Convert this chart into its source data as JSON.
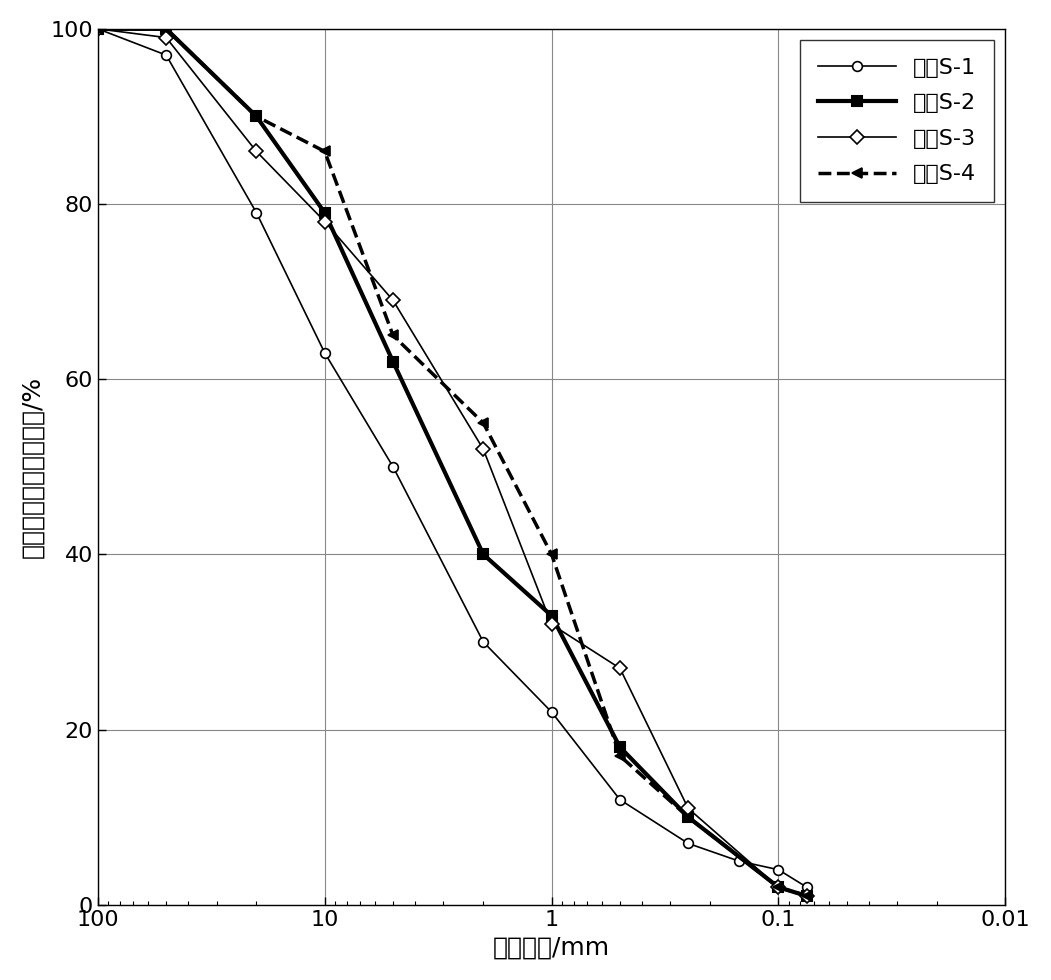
{
  "title": "",
  "xlabel": "土粒直径/mm",
  "ylabel": "小于某粒径土重百分数/%",
  "xlim": [
    0.01,
    100
  ],
  "ylim": [
    0,
    100
  ],
  "yticks": [
    0,
    20,
    40,
    60,
    80,
    100
  ],
  "series": [
    {
      "label": "土样S-1",
      "x": [
        100,
        50,
        20,
        10,
        5,
        2,
        1,
        0.5,
        0.25,
        0.15,
        0.1,
        0.075
      ],
      "y": [
        100,
        97,
        79,
        63,
        50,
        30,
        22,
        12,
        7,
        5,
        4,
        2
      ],
      "color": "#000000",
      "linewidth": 1.2,
      "linestyle": "-",
      "marker": "o",
      "markersize": 7,
      "markerfacecolor": "white",
      "markeredgecolor": "#000000",
      "markeredgewidth": 1.2
    },
    {
      "label": "土样S-2",
      "x": [
        100,
        50,
        20,
        10,
        5,
        2,
        1,
        0.5,
        0.25,
        0.1,
        0.075
      ],
      "y": [
        100,
        100,
        90,
        79,
        62,
        40,
        33,
        18,
        10,
        2,
        1
      ],
      "color": "#000000",
      "linewidth": 3.0,
      "linestyle": "-",
      "marker": "s",
      "markersize": 7,
      "markerfacecolor": "#000000",
      "markeredgecolor": "#000000",
      "markeredgewidth": 1.5
    },
    {
      "label": "土样S-3",
      "x": [
        100,
        50,
        20,
        10,
        5,
        2,
        1,
        0.5,
        0.25,
        0.1,
        0.075
      ],
      "y": [
        100,
        99,
        86,
        78,
        69,
        52,
        32,
        27,
        11,
        2,
        1
      ],
      "color": "#000000",
      "linewidth": 1.2,
      "linestyle": "-",
      "marker": "D",
      "markersize": 7,
      "markerfacecolor": "white",
      "markeredgecolor": "#000000",
      "markeredgewidth": 1.2
    },
    {
      "label": "土样S-4",
      "x": [
        100,
        50,
        20,
        10,
        5,
        2,
        1,
        0.5,
        0.25,
        0.1,
        0.075
      ],
      "y": [
        100,
        100,
        90,
        86,
        65,
        55,
        40,
        17,
        10,
        2,
        1
      ],
      "color": "#000000",
      "linewidth": 2.5,
      "linestyle": "--",
      "marker": "<",
      "markersize": 7,
      "markerfacecolor": "#000000",
      "markeredgecolor": "#000000",
      "markeredgewidth": 1.2
    }
  ],
  "legend_fontsize": 16,
  "axis_fontsize": 18,
  "tick_fontsize": 16,
  "background_color": "#ffffff",
  "grid_color": "#888888",
  "grid_linewidth": 0.8,
  "grid_linestyle": "-"
}
